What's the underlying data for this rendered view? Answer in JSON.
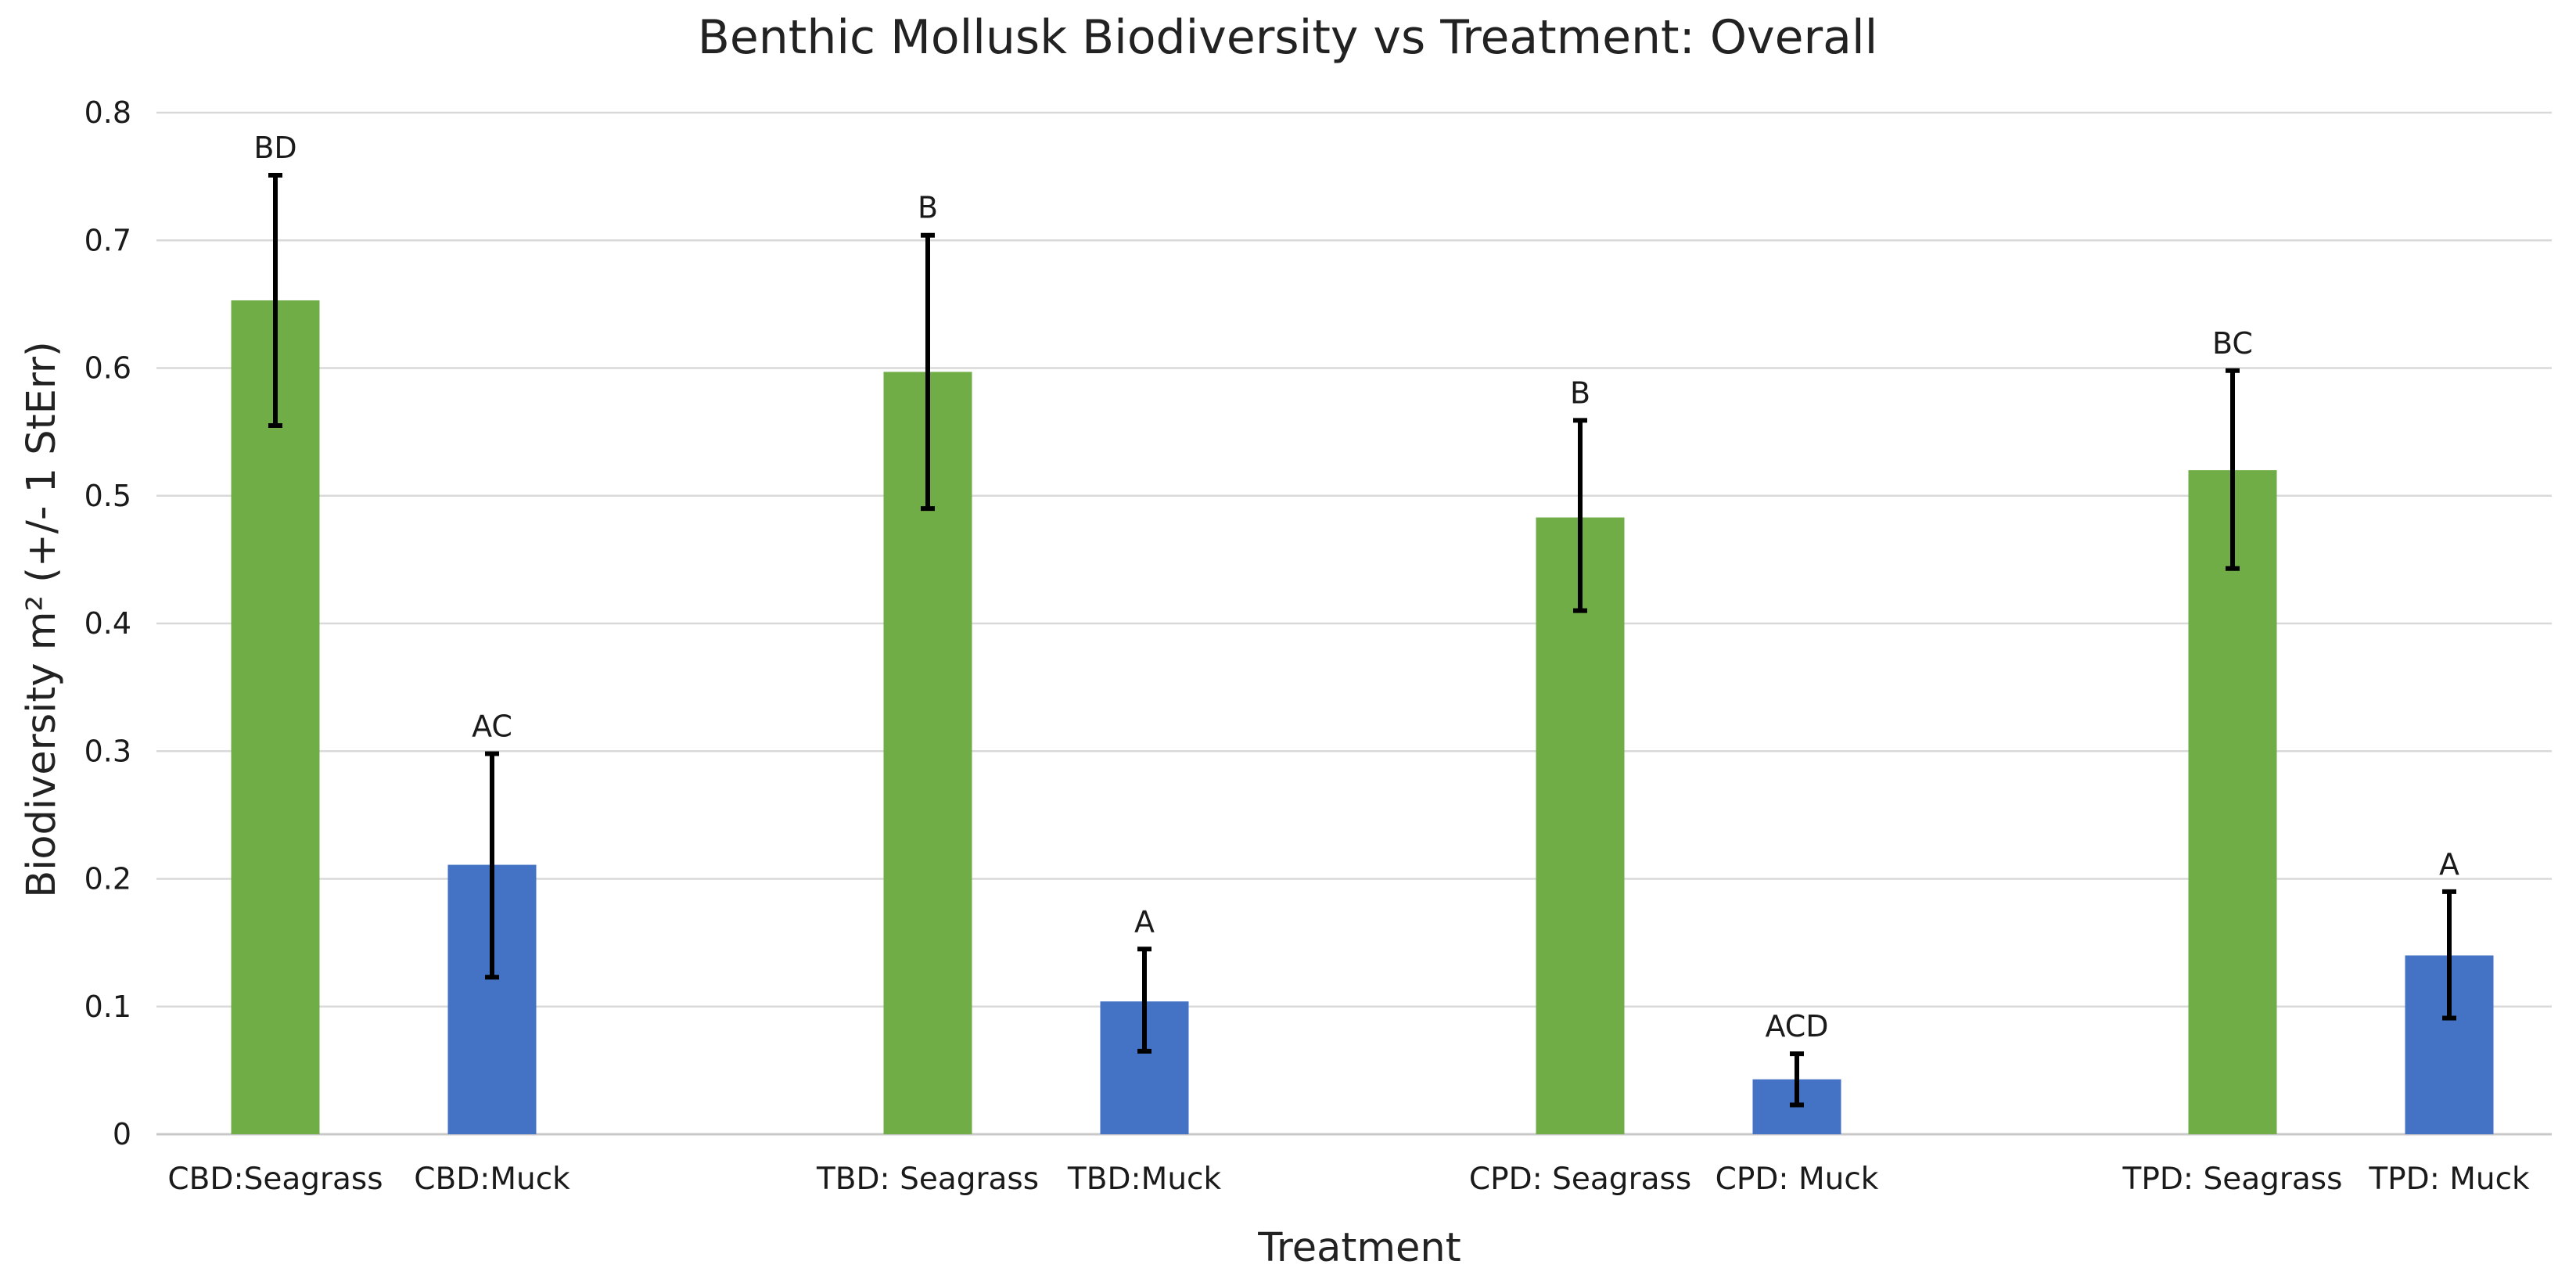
{
  "chart_data": {
    "type": "bar",
    "title": "Benthic Mollusk Biodiversity vs Treatment: Overall",
    "xlabel": "Treatment",
    "ylabel": "Biodiversity m² (+/- 1 StErr)",
    "ylim": [
      0,
      0.8
    ],
    "yticks": [
      0,
      0.1,
      0.2,
      0.3,
      0.4,
      0.5,
      0.6,
      0.7,
      0.8
    ],
    "ytick_labels": [
      "0",
      "0.1",
      "0.2",
      "0.3",
      "0.4",
      "0.5",
      "0.6",
      "0.7",
      "0.8"
    ],
    "grid": true,
    "legend": "none",
    "categories": [
      "CBD:Seagrass",
      "CBD:Muck",
      "TBD: Seagrass",
      "TBD:Muck",
      "CPD: Seagrass",
      "CPD: Muck",
      "TPD: Seagrass",
      "TPD: Muck"
    ],
    "values": [
      0.653,
      0.211,
      0.597,
      0.104,
      0.483,
      0.043,
      0.52,
      0.14
    ],
    "error_low": [
      0.555,
      0.123,
      0.49,
      0.065,
      0.41,
      0.023,
      0.443,
      0.091
    ],
    "error_high": [
      0.751,
      0.298,
      0.704,
      0.145,
      0.559,
      0.063,
      0.598,
      0.19
    ],
    "significance_labels": [
      "BD",
      "AC",
      "B",
      "A",
      "B",
      "ACD",
      "BC",
      "A"
    ],
    "bar_colors": [
      "#70ad47",
      "#4472c4",
      "#70ad47",
      "#4472c4",
      "#70ad47",
      "#4472c4",
      "#70ad47",
      "#4472c4"
    ],
    "colors": {
      "seagrass": "#70ad47",
      "muck": "#4472c4",
      "grid": "#d9d9d9",
      "error_bar": "#000000",
      "text": "#222222"
    }
  }
}
